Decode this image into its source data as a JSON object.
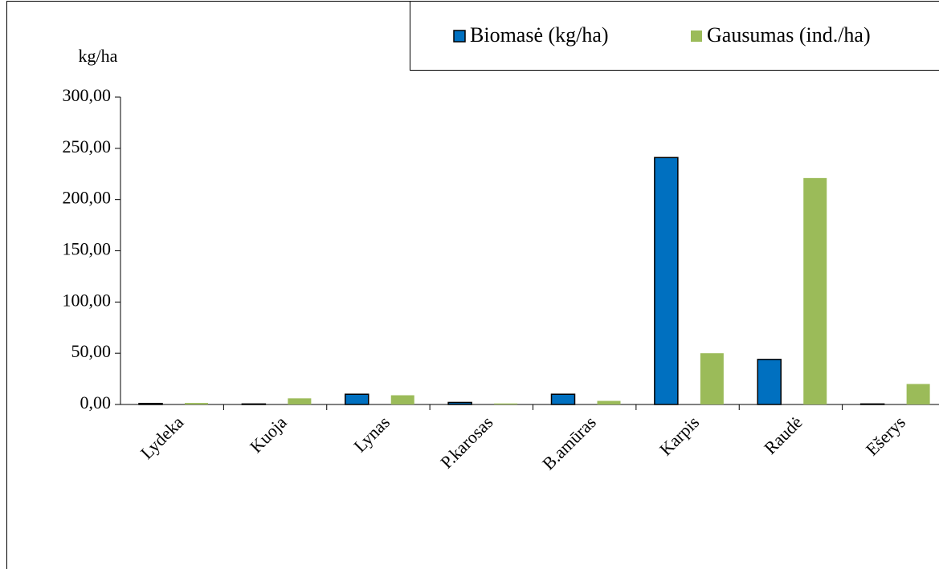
{
  "chart_data": {
    "type": "bar",
    "y_label": "kg/ha",
    "categories": [
      "Lydeka",
      "Kuoja",
      "Lynas",
      "P.karosas",
      "B.amūras",
      "Karpis",
      "Raudė",
      "Ešerys"
    ],
    "series": [
      {
        "name": "Biomasė (kg/ha)",
        "color": "#0070c0",
        "values": [
          1,
          0.5,
          10,
          2,
          10,
          241,
          44,
          0.5
        ]
      },
      {
        "name": "Gausumas (ind./ha)",
        "color": "#9bbb59",
        "values": [
          1.5,
          6,
          9,
          1,
          3.5,
          50,
          221,
          20
        ]
      }
    ],
    "ylim": [
      0,
      300
    ],
    "yticks": [
      {
        "value": 0,
        "label": "0,00"
      },
      {
        "value": 50,
        "label": "50,00"
      },
      {
        "value": 100,
        "label": "100,00"
      },
      {
        "value": 150,
        "label": "150,00"
      },
      {
        "value": 200,
        "label": "200,00"
      },
      {
        "value": 250,
        "label": "250,00"
      },
      {
        "value": 300,
        "label": "300,00"
      }
    ],
    "legend": "top-right"
  }
}
